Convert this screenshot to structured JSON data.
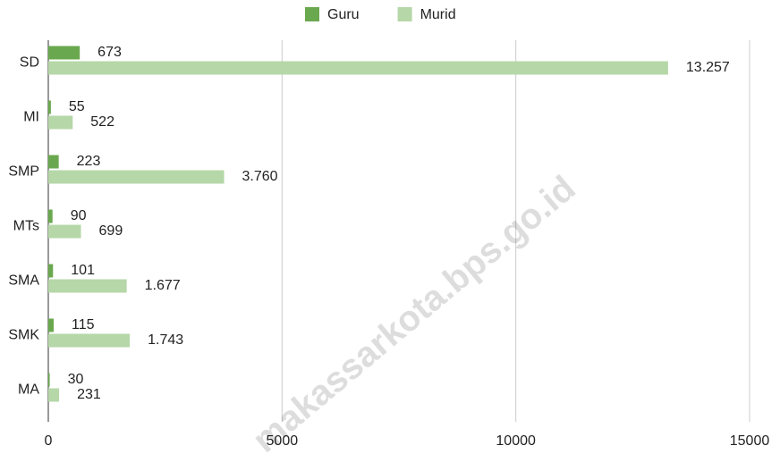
{
  "chart_data": {
    "type": "bar",
    "orientation": "horizontal",
    "categories": [
      "SD",
      "MI",
      "SMP",
      "MTs",
      "SMA",
      "SMK",
      "MA"
    ],
    "series": [
      {
        "name": "Guru",
        "color": "#6aa84f",
        "values": [
          673,
          55,
          223,
          90,
          101,
          115,
          30
        ]
      },
      {
        "name": "Murid",
        "color": "#b6d7a8",
        "values": [
          13257,
          522,
          3760,
          699,
          1677,
          1743,
          231
        ],
        "value_labels": [
          "13.257",
          "522",
          "3.760",
          "699",
          "1.677",
          "1.743",
          "231"
        ]
      }
    ],
    "xlim": [
      0,
      15000
    ],
    "xticks": [
      0,
      5000,
      10000,
      15000
    ],
    "grid": true,
    "legend": "top",
    "watermark": "makassarkota.bps.go.id"
  }
}
